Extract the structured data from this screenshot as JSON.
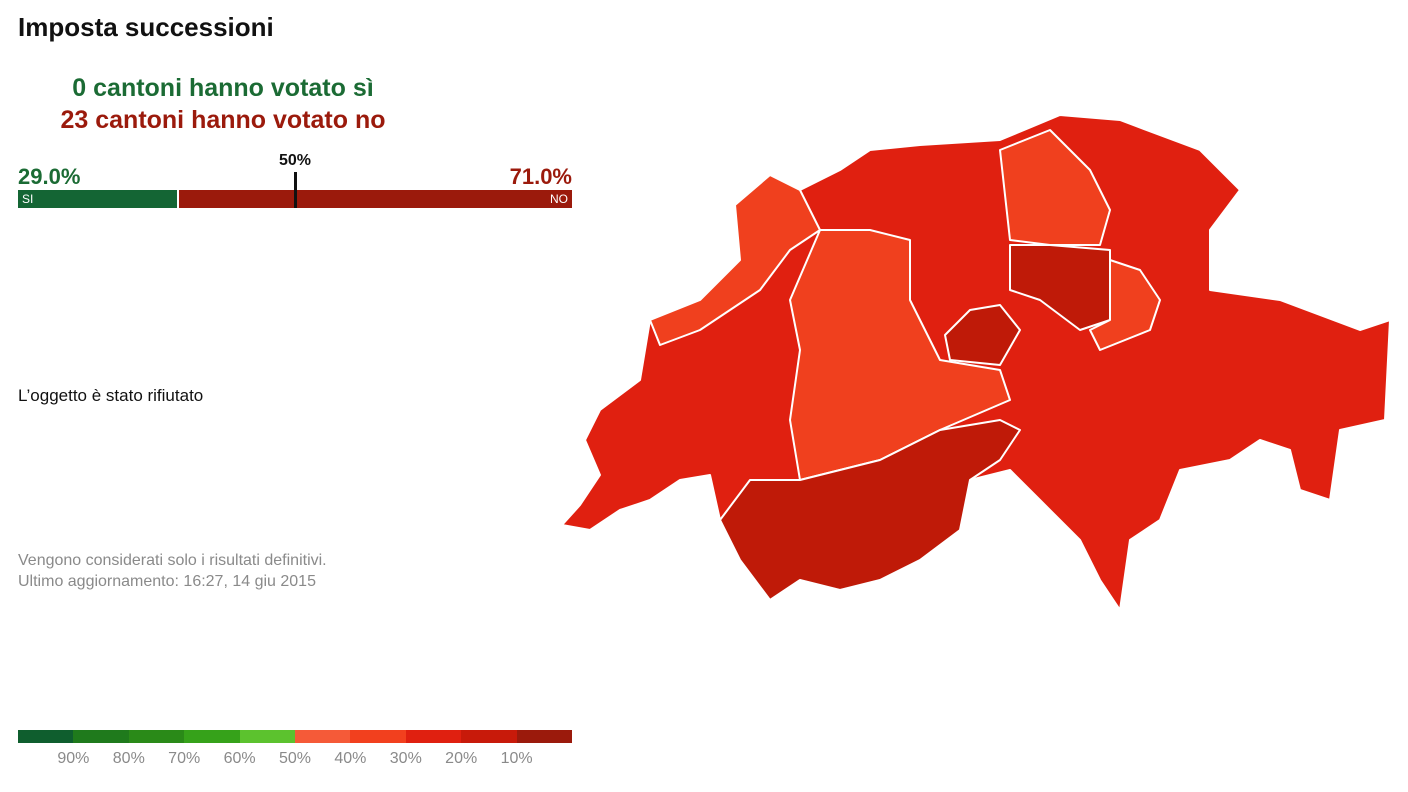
{
  "header": {
    "title": "Imposta successioni"
  },
  "summary": {
    "yes_cantons": "0 cantoni hanno votato sì",
    "no_cantons": "23 cantoni hanno votato no"
  },
  "result": {
    "yes": {
      "value": 29.0,
      "label": "29.0%"
    },
    "no": {
      "value": 71.0,
      "label": "71.0%"
    },
    "majority": {
      "value": 50,
      "label": "50%"
    },
    "yes_label": "SI",
    "no_label": "NO"
  },
  "status": "L’oggetto è stato rifiutato",
  "notes": [
    "Vengono considerati solo i risultati definitivi.",
    "Ultimo aggiornamento: 16:27, 14 giu 2015"
  ],
  "legend": {
    "colors": [
      "#0f5e2e",
      "#1f7a1c",
      "#2a8a18",
      "#36a21a",
      "#5cc22e",
      "#f55a38",
      "#f2401e",
      "#e02010",
      "#c81a0a",
      "#9b1a0c"
    ],
    "labels": [
      "90%",
      "80%",
      "70%",
      "60%",
      "50%",
      "40%",
      "30%",
      "20%",
      "10%"
    ]
  }
}
